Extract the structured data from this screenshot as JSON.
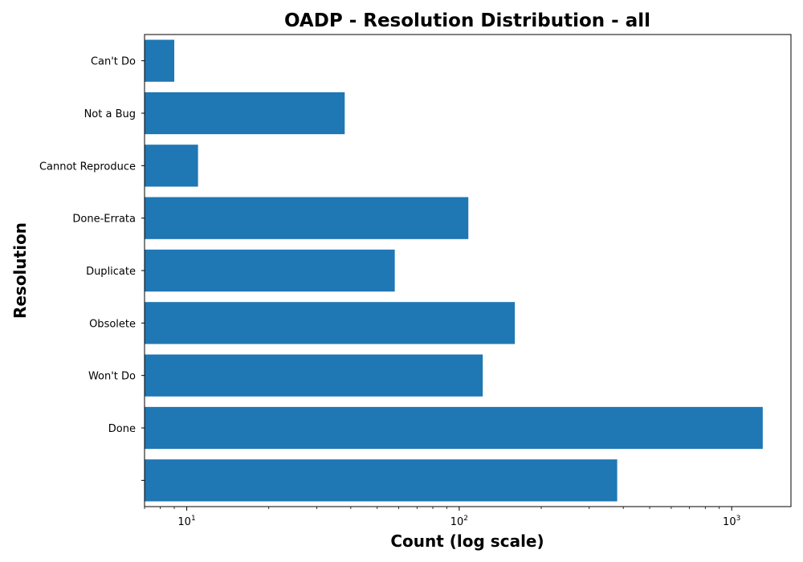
{
  "chart_data": {
    "type": "bar",
    "orientation": "horizontal",
    "title": "OADP - Resolution Distribution - all",
    "xlabel": "Count (log scale)",
    "ylabel": "Resolution",
    "x_scale": "log",
    "xlim": [
      7,
      1650
    ],
    "x_major_ticks": [
      {
        "value": 10,
        "base": "10",
        "exp": "1"
      },
      {
        "value": 100,
        "base": "10",
        "exp": "2"
      },
      {
        "value": 1000,
        "base": "10",
        "exp": "3"
      }
    ],
    "categories": [
      "Can't Do",
      "Not a Bug",
      "Cannot Reproduce",
      "Done-Errata",
      "Duplicate",
      "Obsolete",
      "Won't Do",
      "Done",
      ""
    ],
    "values": [
      9,
      38,
      11,
      108,
      58,
      160,
      122,
      1300,
      380
    ],
    "bar_color": "#1f77b4",
    "grid": false,
    "legend": "none"
  }
}
